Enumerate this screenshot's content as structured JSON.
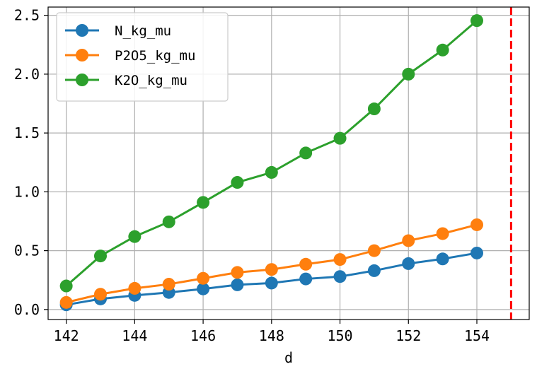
{
  "chart_data": {
    "type": "line",
    "x": [
      142,
      143,
      144,
      145,
      146,
      147,
      148,
      149,
      150,
      151,
      152,
      153,
      154
    ],
    "series": [
      {
        "name": "N_kg_mu",
        "color": "#1f77b4",
        "values": [
          0.04,
          0.09,
          0.12,
          0.145,
          0.175,
          0.21,
          0.225,
          0.26,
          0.28,
          0.33,
          0.39,
          0.43,
          0.48
        ]
      },
      {
        "name": "P2O5_kg_mu",
        "color": "#ff7f0e",
        "values": [
          0.06,
          0.13,
          0.18,
          0.215,
          0.265,
          0.315,
          0.34,
          0.385,
          0.425,
          0.5,
          0.585,
          0.645,
          0.72
        ]
      },
      {
        "name": "K2O_kg_mu",
        "color": "#2ca02c",
        "values": [
          0.2,
          0.455,
          0.62,
          0.745,
          0.91,
          1.08,
          1.165,
          1.33,
          1.455,
          1.705,
          2.0,
          2.205,
          2.455
        ]
      }
    ],
    "xlabel": "d",
    "ylabel": "",
    "xticks": [
      142,
      144,
      146,
      148,
      150,
      152,
      154
    ],
    "yticks": [
      0.0,
      0.5,
      1.0,
      1.5,
      2.0,
      2.5
    ],
    "ytick_labels": [
      "0.0",
      "0.5",
      "1.0",
      "1.5",
      "2.0",
      "2.5"
    ],
    "xlim": [
      141.47,
      155.53
    ],
    "ylim": [
      -0.085,
      2.57
    ],
    "grid": true,
    "legend_position": "top-left",
    "vline": {
      "x": 155,
      "color": "#ff0000",
      "style": "dashed"
    }
  }
}
